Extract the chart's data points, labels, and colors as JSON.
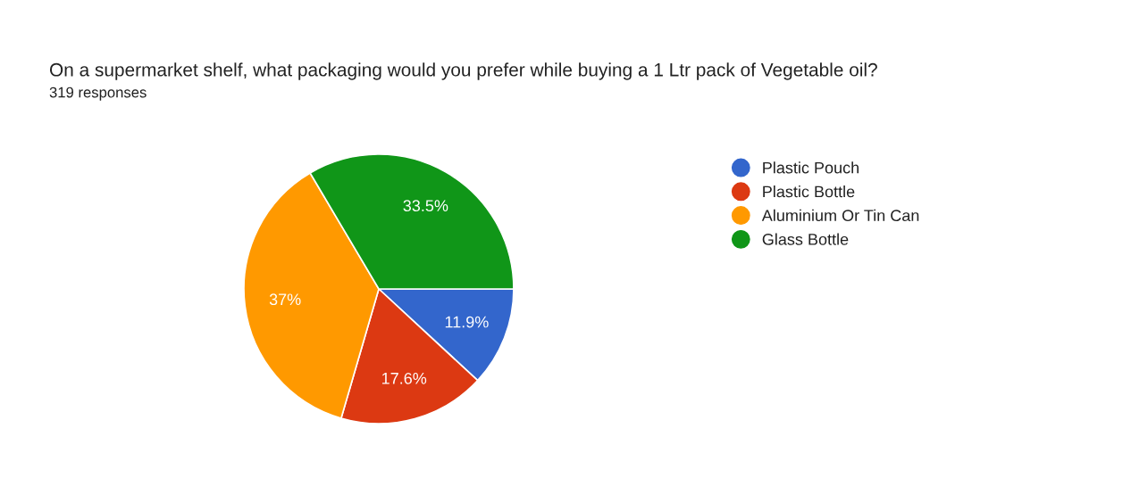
{
  "chart_data": {
    "type": "pie",
    "title": "On a supermarket shelf, what packaging would you prefer while buying a 1 Ltr pack of Vegetable oil?",
    "subtitle": "319 responses",
    "categories": [
      "Plastic Pouch",
      "Plastic Bottle",
      "Aluminium Or Tin Can",
      "Glass Bottle"
    ],
    "values": [
      11.9,
      17.6,
      37,
      33.5
    ],
    "value_labels": [
      "11.9%",
      "17.6%",
      "37%",
      "33.5%"
    ],
    "colors": [
      "#3366cc",
      "#dc3912",
      "#ff9900",
      "#109618"
    ],
    "legend": "right"
  }
}
